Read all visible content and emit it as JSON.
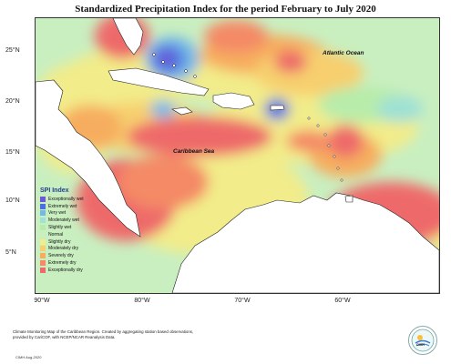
{
  "title": "Standardized Precipitation Index for the period February to July 2020",
  "map": {
    "lat_labels": [
      "25°N",
      "20°N",
      "15°N",
      "10°N",
      "5°N"
    ],
    "lon_labels": [
      "90°W",
      "80°W",
      "70°W",
      "60°W"
    ],
    "ocean_labels": {
      "atlantic": "Atlantic Ocean",
      "caribbean": "Caribbean Sea"
    }
  },
  "legend": {
    "title": "SPI Index",
    "items": [
      {
        "label": "Exceptionally wet",
        "color": "#6a5ad8"
      },
      {
        "label": "Extremely wet",
        "color": "#4d6fe0"
      },
      {
        "label": "Very wet",
        "color": "#73b8e8"
      },
      {
        "label": "Moderately wet",
        "color": "#9fe1d4"
      },
      {
        "label": "Slightly wet",
        "color": "#b8ecaa"
      },
      {
        "label": "Normal",
        "color": "#c9efc0"
      },
      {
        "label": "Slightly dry",
        "color": "#f2ec8a"
      },
      {
        "label": "Moderately dry",
        "color": "#f7cf6e"
      },
      {
        "label": "Severely dry",
        "color": "#f6ad5f"
      },
      {
        "label": "Extremely dry",
        "color": "#f48a66"
      },
      {
        "label": "Exceptionally dry",
        "color": "#ee6a6a"
      }
    ]
  },
  "footer": {
    "note": "Climate Monitoring Map of the Caribbean Region. Created by aggregating station based observations, provided by CariCOF, with NCEP/NCAR Reanalysis Data.",
    "credit": "CIMH Aug-2020",
    "logo_text": "CIMH"
  }
}
